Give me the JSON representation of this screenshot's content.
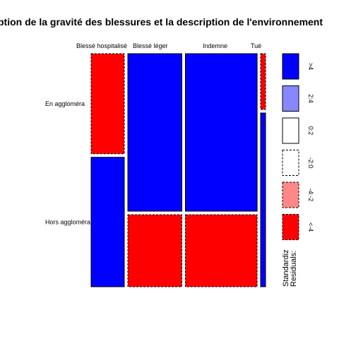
{
  "chart_data": {
    "type": "mosaic",
    "title": "ption de la gravité des blessures et la description de l'environnement",
    "columns": [
      "Blessé hospitalisé",
      "Blessé léger",
      "Indemne",
      "Tué"
    ],
    "column_labels_shown": [
      "Blessé hospitalisé",
      "Blessé léger",
      "Indemne",
      "Tué"
    ],
    "rows": [
      "En agglomération",
      "Hors agglomération"
    ],
    "row_labels_shown": [
      "En aggloméra",
      "Hors aggloméra"
    ],
    "column_proportions": [
      0.148,
      0.241,
      0.32,
      0.022
    ],
    "row_proportions_within_column": [
      [
        0.436,
        0.564
      ],
      [
        0.686,
        0.314
      ],
      [
        0.686,
        0.314
      ],
      [
        0.243,
        0.757
      ]
    ],
    "standardized_residual_class": [
      [
        "<-4",
        ">4"
      ],
      [
        ">4",
        "<-4"
      ],
      [
        ">4",
        "<-4"
      ],
      [
        "<-4",
        ">4"
      ]
    ],
    "legend": {
      "title": "Standardized Residuals:",
      "title_lines": [
        "Standardiz",
        "Residuals:"
      ],
      "entries": [
        {
          "label": ">4",
          "fill": "#0000ff",
          "dashed": false
        },
        {
          "label": "2:4",
          "fill": "#8787ff",
          "dashed": false
        },
        {
          "label": "0:2",
          "fill": "#ffffff",
          "dashed": false
        },
        {
          "label": "-2:0",
          "fill": "#ffffff",
          "dashed": true
        },
        {
          "label": "-4:-2",
          "fill": "#ff8787",
          "dashed": true
        },
        {
          "label": "<-4",
          "fill": "#ff0000",
          "dashed": true
        }
      ],
      "placement": "right"
    },
    "colors": {
      "positive": "#0000ff",
      "negative": "#ff0000"
    }
  }
}
